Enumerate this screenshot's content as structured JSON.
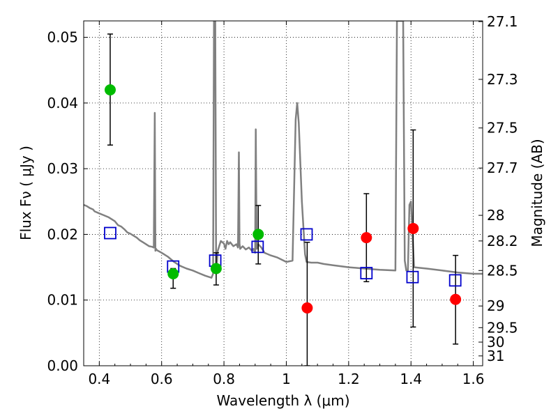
{
  "chart_data": {
    "type": "scatter",
    "title": "",
    "xlabel": "Wavelength  λ (μm)",
    "ylabel": "Flux  Fν  ( μJy )",
    "y2label": "Magnitude (AB)",
    "xlim": [
      0.35,
      1.63
    ],
    "ylim": [
      0.0,
      0.0525
    ],
    "grid": true,
    "x_ticks": [
      0.4,
      0.6,
      0.8,
      1.0,
      1.2,
      1.4,
      1.6
    ],
    "x_tick_labels": [
      "0.4",
      "0.6",
      "0.8",
      "1",
      "1.2",
      "1.4",
      "1.6"
    ],
    "y_ticks": [
      0.0,
      0.01,
      0.02,
      0.03,
      0.04,
      0.05
    ],
    "y_tick_labels": [
      "0.00",
      "0.01",
      "0.02",
      "0.03",
      "0.04",
      "0.05"
    ],
    "y2_ticks": [
      {
        "label": "27.1",
        "flux": 0.0524
      },
      {
        "label": "27.3",
        "flux": 0.0436
      },
      {
        "label": "27.5",
        "flux": 0.0362
      },
      {
        "label": "27.7",
        "flux": 0.0301
      },
      {
        "label": "28",
        "flux": 0.0229
      },
      {
        "label": "28.2",
        "flux": 0.019
      },
      {
        "label": "28.5",
        "flux": 0.0145
      },
      {
        "label": "29",
        "flux": 0.0091
      },
      {
        "label": "29.5",
        "flux": 0.0058
      },
      {
        "label": "30",
        "flux": 0.0036
      },
      {
        "label": "31",
        "flux": 0.0015
      }
    ],
    "colors": {
      "template": "#808080",
      "detection": "#00bb00",
      "upper": "#ff0000",
      "model": "#0000cc",
      "errorbar": "#000000",
      "grid": "#000000"
    },
    "series": [
      {
        "type": "line",
        "color": "#808080",
        "x": [
          0.35,
          0.36,
          0.37,
          0.38,
          0.385,
          0.39,
          0.4,
          0.41,
          0.42,
          0.43,
          0.44,
          0.45,
          0.46,
          0.47,
          0.48,
          0.49,
          0.5,
          0.51,
          0.52,
          0.53,
          0.54,
          0.55,
          0.56,
          0.57,
          0.575,
          0.578,
          0.58,
          0.582,
          0.585,
          0.6,
          0.62,
          0.64,
          0.66,
          0.68,
          0.7,
          0.72,
          0.74,
          0.76,
          0.765,
          0.768,
          0.772,
          0.775,
          0.78,
          0.79,
          0.8,
          0.805,
          0.81,
          0.815,
          0.82,
          0.83,
          0.84,
          0.845,
          0.848,
          0.85,
          0.852,
          0.86,
          0.87,
          0.88,
          0.89,
          0.895,
          0.9,
          0.902,
          0.905,
          0.91,
          0.92,
          0.93,
          0.95,
          0.97,
          1.0,
          1.02,
          1.03,
          1.035,
          1.04,
          1.05,
          1.06,
          1.065,
          1.08,
          1.1,
          1.12,
          1.15,
          1.2,
          1.25,
          1.3,
          1.35,
          1.355,
          1.36,
          1.37,
          1.375,
          1.38,
          1.385,
          1.39,
          1.395,
          1.4,
          1.41,
          1.45,
          1.5,
          1.55,
          1.6,
          1.63
        ],
        "y": [
          0.0245,
          0.0243,
          0.024,
          0.0238,
          0.0235,
          0.0234,
          0.0232,
          0.023,
          0.0228,
          0.0226,
          0.0223,
          0.022,
          0.0214,
          0.0212,
          0.0208,
          0.0203,
          0.0201,
          0.0198,
          0.0195,
          0.0191,
          0.0188,
          0.0185,
          0.0182,
          0.0181,
          0.018,
          0.0385,
          0.0175,
          0.0178,
          0.0176,
          0.0172,
          0.0166,
          0.0158,
          0.0152,
          0.0148,
          0.0145,
          0.0141,
          0.0137,
          0.0134,
          0.014,
          0.0525,
          0.0525,
          0.014,
          0.0175,
          0.019,
          0.0186,
          0.0178,
          0.019,
          0.0185,
          0.0188,
          0.0182,
          0.0185,
          0.018,
          0.0325,
          0.0186,
          0.0178,
          0.0182,
          0.0177,
          0.018,
          0.0175,
          0.0178,
          0.0172,
          0.036,
          0.0178,
          0.0185,
          0.018,
          0.0172,
          0.0168,
          0.0165,
          0.0158,
          0.016,
          0.0375,
          0.04,
          0.037,
          0.025,
          0.017,
          0.0158,
          0.0157,
          0.0157,
          0.0155,
          0.0153,
          0.015,
          0.0148,
          0.0146,
          0.0145,
          0.0525,
          0.0525,
          0.0525,
          0.0525,
          0.016,
          0.0145,
          0.0145,
          0.0245,
          0.025,
          0.015,
          0.0148,
          0.0145,
          0.0142,
          0.014,
          0.014
        ]
      },
      {
        "type": "errorbar",
        "points": [
          {
            "x": 0.435,
            "y": 0.042,
            "lo": 0.0336,
            "hi": 0.0505,
            "color": "#00bb00"
          },
          {
            "x": 0.637,
            "y": 0.014,
            "lo": 0.0118,
            "hi": 0.0148,
            "color": "#00bb00"
          },
          {
            "x": 0.775,
            "y": 0.0148,
            "lo": 0.0123,
            "hi": 0.0172,
            "color": "#00bb00"
          },
          {
            "x": 0.91,
            "y": 0.02,
            "lo": 0.0155,
            "hi": 0.0244,
            "color": "#00bb00"
          },
          {
            "x": 1.067,
            "y": 0.0088,
            "lo": 0.0,
            "hi": 0.0188,
            "color": "#ff0000"
          },
          {
            "x": 1.257,
            "y": 0.0195,
            "lo": 0.0128,
            "hi": 0.0262,
            "color": "#ff0000"
          },
          {
            "x": 1.407,
            "y": 0.0209,
            "lo": 0.0059,
            "hi": 0.0359,
            "color": "#ff0000"
          },
          {
            "x": 1.543,
            "y": 0.0101,
            "lo": 0.0033,
            "hi": 0.0168,
            "color": "#ff0000"
          }
        ]
      },
      {
        "type": "scatter",
        "marker": "square",
        "color": "#0000cc",
        "x": [
          0.435,
          0.637,
          0.772,
          0.908,
          1.065,
          1.257,
          1.405,
          1.542
        ],
        "y": [
          0.0202,
          0.0151,
          0.016,
          0.0181,
          0.02,
          0.0141,
          0.0135,
          0.013
        ]
      }
    ]
  }
}
